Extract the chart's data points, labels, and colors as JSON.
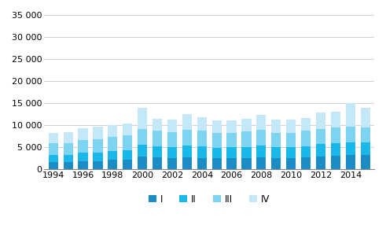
{
  "years": [
    1994,
    1995,
    1996,
    1997,
    1998,
    1999,
    2000,
    2001,
    2002,
    2003,
    2004,
    2005,
    2006,
    2007,
    2008,
    2009,
    2010,
    2011,
    2012,
    2013,
    2014,
    2015
  ],
  "Q1": [
    1600,
    1600,
    1900,
    1900,
    2100,
    2200,
    2900,
    2700,
    2600,
    2700,
    2600,
    2500,
    2500,
    2600,
    2700,
    2500,
    2500,
    2700,
    2900,
    3000,
    3200,
    3300
  ],
  "Q2": [
    1600,
    1600,
    1800,
    1900,
    2100,
    2200,
    2700,
    2600,
    2500,
    2700,
    2600,
    2400,
    2500,
    2500,
    2700,
    2500,
    2500,
    2600,
    2800,
    2900,
    2900,
    2800
  ],
  "Q3": [
    2700,
    2700,
    3000,
    3000,
    3200,
    3300,
    3600,
    3500,
    3400,
    3600,
    3500,
    3300,
    3300,
    3500,
    3500,
    3300,
    3300,
    3400,
    3500,
    3600,
    3600,
    3400
  ],
  "Q4": [
    2400,
    2600,
    2700,
    2800,
    2700,
    2700,
    4800,
    2700,
    2700,
    3600,
    3100,
    2900,
    2800,
    2800,
    3500,
    2900,
    2900,
    2900,
    3600,
    3600,
    5400,
    4500
  ],
  "colors": [
    "#1B8CC4",
    "#19B8E8",
    "#7DD4F0",
    "#C5E8F8"
  ],
  "legend_labels": [
    "I",
    "II",
    "III",
    "IV"
  ],
  "ylim": [
    0,
    35000
  ],
  "yticks": [
    0,
    5000,
    10000,
    15000,
    20000,
    25000,
    30000,
    35000
  ],
  "background_color": "#ffffff",
  "grid_color": "#c8c8c8"
}
